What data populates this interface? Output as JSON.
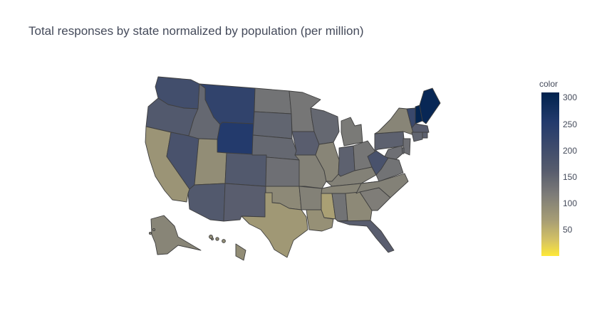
{
  "title": "Total responses by state normalized by population (per million)",
  "legend": {
    "title": "color",
    "ticks": [
      "300",
      "250",
      "200",
      "150",
      "100",
      "50"
    ],
    "range": [
      0,
      310
    ],
    "colorscale": [
      "#fee838",
      "#d3c164",
      "#a69d75",
      "#7c7b78",
      "#575c6d",
      "#3b496c",
      "#233a6c",
      "#00224e"
    ]
  },
  "chart_data": {
    "type": "choropleth",
    "scope": "usa",
    "color_range": [
      0,
      310
    ],
    "values": {
      "ME": 300,
      "NH": 305,
      "VT": 225,
      "MA": 175,
      "RI": 170,
      "CT": 165,
      "NY": 120,
      "NJ": 150,
      "PA": 170,
      "DE": 155,
      "MD": 150,
      "WA": 210,
      "OR": 185,
      "CA": 100,
      "NV": 200,
      "ID": 160,
      "MT": 240,
      "WY": 265,
      "UT": 110,
      "AZ": 185,
      "CO": 185,
      "NM": 175,
      "ND": 145,
      "SD": 165,
      "NE": 160,
      "KS": 150,
      "OK": 115,
      "TX": 95,
      "MN": 140,
      "IA": 175,
      "MO": 125,
      "AR": 125,
      "LA": 105,
      "WI": 160,
      "IL": 120,
      "MI": 135,
      "IN": 170,
      "OH": 140,
      "KY": 125,
      "TN": 120,
      "MS": 85,
      "AL": 145,
      "GA": 115,
      "FL": 175,
      "SC": 130,
      "NC": 125,
      "VA": 145,
      "WV": 200,
      "AK": 120,
      "HI": 110
    }
  }
}
